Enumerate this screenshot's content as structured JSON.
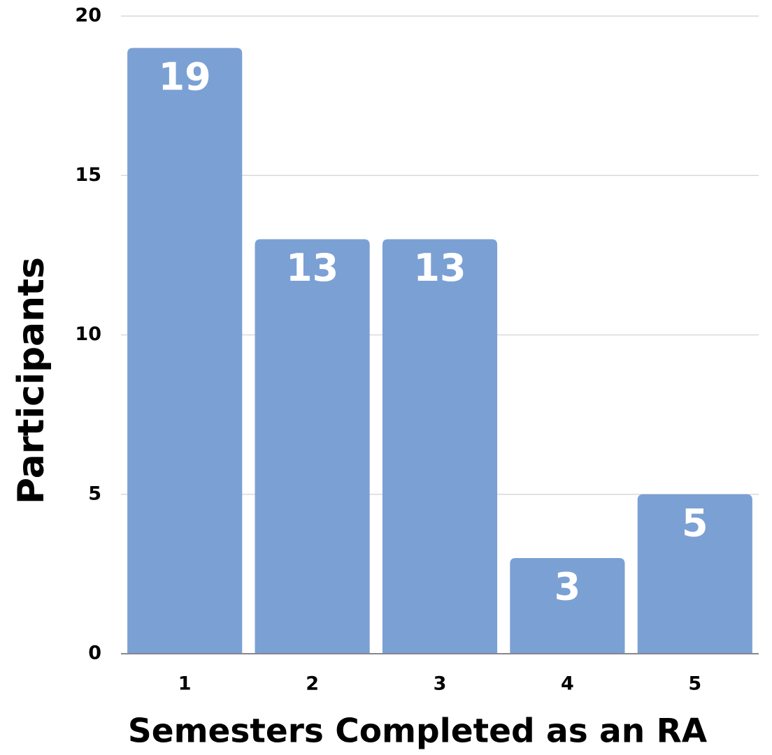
{
  "chart_data": {
    "type": "bar",
    "x_label": "Semesters Completed as an RA",
    "y_label": "Participants",
    "categories": [
      "1",
      "2",
      "3",
      "4",
      "5"
    ],
    "values": [
      19,
      13,
      13,
      3,
      5
    ],
    "color": "#7ba0d4",
    "ylim": [
      0,
      20
    ],
    "yticks": [
      0,
      5,
      10,
      15,
      20
    ],
    "grid": true
  }
}
